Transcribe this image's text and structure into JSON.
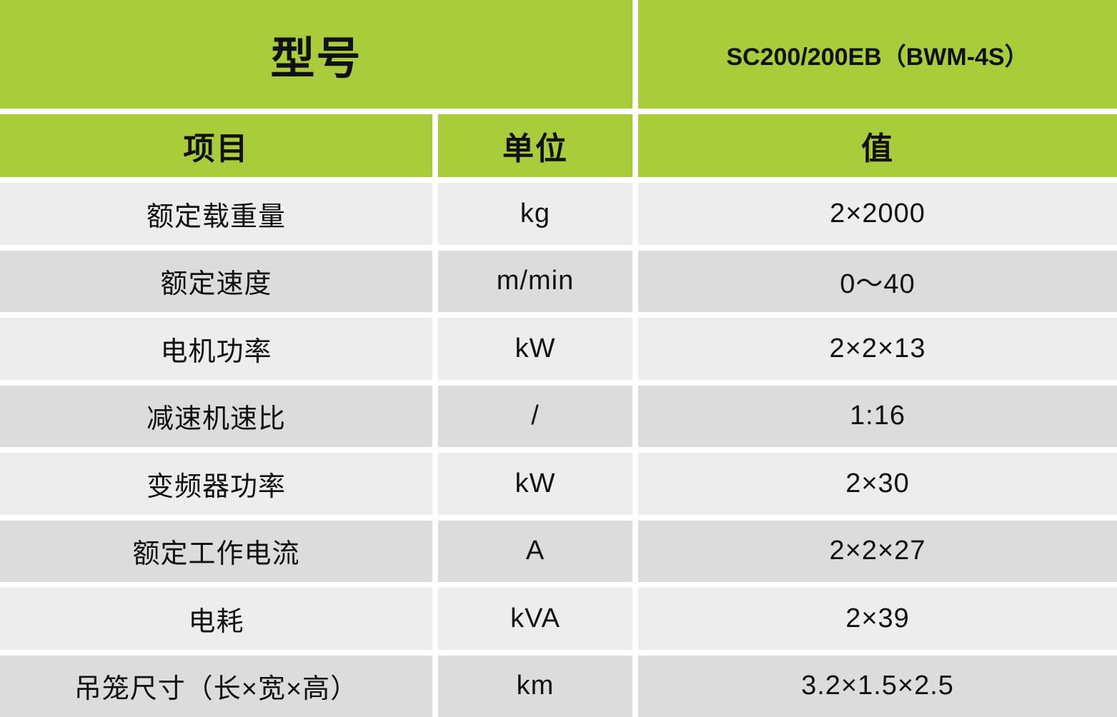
{
  "table": {
    "header": {
      "model_label": "型号",
      "model_value": "SC200/200EB（BWM-4S）",
      "columns": [
        {
          "key": "item",
          "label": "项目"
        },
        {
          "key": "unit",
          "label": "单位"
        },
        {
          "key": "value",
          "label": "值"
        }
      ]
    },
    "rows": [
      {
        "item": "额定载重量",
        "unit": "kg",
        "value": "2×2000"
      },
      {
        "item": "额定速度",
        "unit": "m/min",
        "value": "0～40"
      },
      {
        "item": "电机功率",
        "unit": "kW",
        "value": "2×2×13"
      },
      {
        "item": "减速机速比",
        "unit": "/",
        "value": "1:16"
      },
      {
        "item": "变频器功率",
        "unit": "kW",
        "value": "2×30"
      },
      {
        "item": "额定工作电流",
        "unit": "A",
        "value": "2×2×27"
      },
      {
        "item": "电耗",
        "unit": "kVA",
        "value": "2×39"
      },
      {
        "item": "吊笼尺寸（长×宽×高）",
        "unit": "km",
        "value": "3.2×1.5×2.5"
      }
    ],
    "colors": {
      "header_green": "#a9cd3a",
      "row_light": "#ededed",
      "row_dark": "#dcdcdc",
      "gap_white": "#ffffff",
      "text": "#111111"
    }
  }
}
